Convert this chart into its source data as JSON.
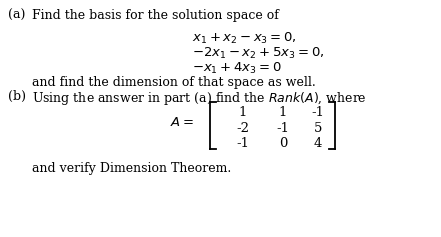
{
  "bg_color": "#ffffff",
  "text_color": "#000000",
  "part_a_label": "(a)",
  "part_a_text": "Find the basis for the solution space of",
  "eq1": "$x_1 + x_2 - x_3 = 0,$",
  "eq2": "$-2x_1 - x_2 + 5x_3 = 0,$",
  "eq3": "$-x_1 + 4x_3 = 0$",
  "and_find": "and find the dimension of that space as well.",
  "part_b_label": "(b)",
  "part_b_text": "Using the answer in part (a) find the $\\mathit{Rank}(A)$, where",
  "verify_text": "and verify Dimension Theorem.",
  "matrix": [
    [
      "1",
      "1",
      "-1"
    ],
    [
      "-2",
      "-1",
      "5"
    ],
    [
      "-1",
      "0",
      "4"
    ]
  ],
  "font_size": 9.0,
  "font_size_eq": 9.5
}
